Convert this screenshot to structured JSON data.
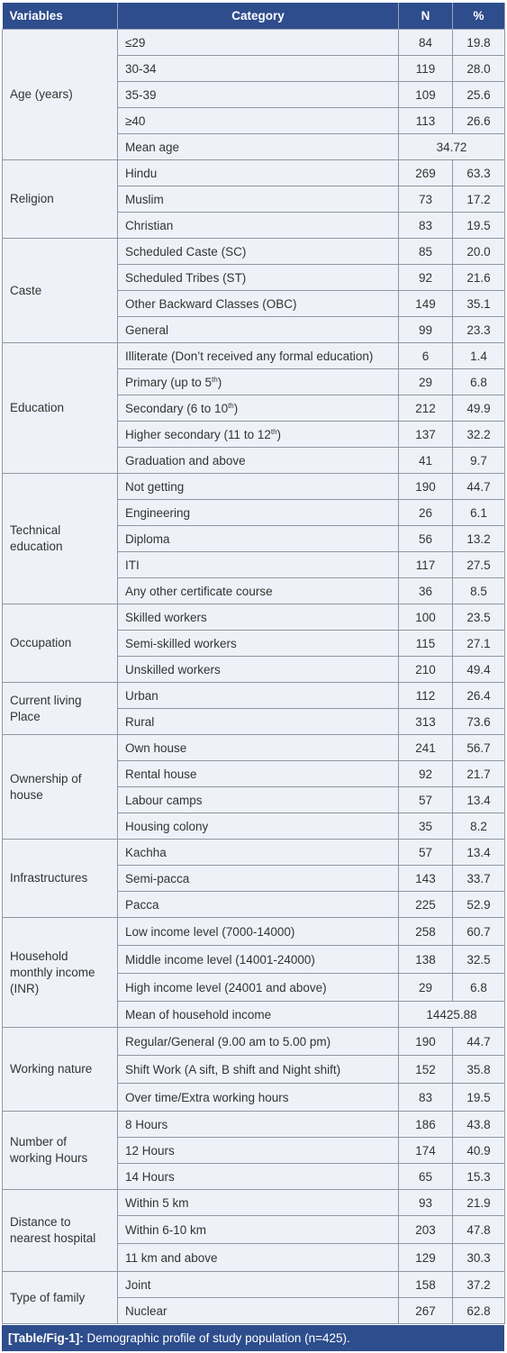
{
  "headers": {
    "variables": "Variables",
    "category": "Category",
    "n": "N",
    "pct": "%"
  },
  "groups": [
    {
      "variable": "Age (years)",
      "rows": [
        {
          "category": "≤29",
          "n": "84",
          "pct": "19.8"
        },
        {
          "category": "30-34",
          "n": "119",
          "pct": "28.0"
        },
        {
          "category": "35-39",
          "n": "109",
          "pct": "25.6"
        },
        {
          "category": "≥40",
          "n": "113",
          "pct": "26.6"
        },
        {
          "category": "Mean age",
          "merged": "34.72"
        }
      ]
    },
    {
      "variable": "Religion",
      "rows": [
        {
          "category": "Hindu",
          "n": "269",
          "pct": "63.3"
        },
        {
          "category": "Muslim",
          "n": "73",
          "pct": "17.2"
        },
        {
          "category": "Christian",
          "n": "83",
          "pct": "19.5"
        }
      ]
    },
    {
      "variable": "Caste",
      "rows": [
        {
          "category": "Scheduled Caste (SC)",
          "n": "85",
          "pct": "20.0"
        },
        {
          "category": "Scheduled Tribes (ST)",
          "n": "92",
          "pct": "21.6"
        },
        {
          "category": "Other Backward Classes (OBC)",
          "n": "149",
          "pct": "35.1"
        },
        {
          "category": "General",
          "n": "99",
          "pct": "23.3"
        }
      ]
    },
    {
      "variable": "Education",
      "rows": [
        {
          "category": "Illiterate (Don’t received any formal education)",
          "n": "6",
          "pct": "1.4"
        },
        {
          "category": "Primary (up to 5",
          "sup": "th",
          "after": ")",
          "n": "29",
          "pct": "6.8"
        },
        {
          "category": "Secondary (6 to 10",
          "sup": "th",
          "after": ")",
          "n": "212",
          "pct": "49.9"
        },
        {
          "category": "Higher secondary (11 to 12",
          "sup": "th",
          "after": ")",
          "n": "137",
          "pct": "32.2"
        },
        {
          "category": "Graduation and above",
          "n": "41",
          "pct": "9.7"
        }
      ]
    },
    {
      "variable": "Technical education",
      "rows": [
        {
          "category": "Not getting",
          "n": "190",
          "pct": "44.7"
        },
        {
          "category": "Engineering",
          "n": "26",
          "pct": "6.1"
        },
        {
          "category": "Diploma",
          "n": "56",
          "pct": "13.2"
        },
        {
          "category": "ITI",
          "n": "117",
          "pct": "27.5"
        },
        {
          "category": "Any other certificate course",
          "n": "36",
          "pct": "8.5"
        }
      ]
    },
    {
      "variable": "Occupation",
      "rows": [
        {
          "category": "Skilled workers",
          "n": "100",
          "pct": "23.5"
        },
        {
          "category": "Semi-skilled workers",
          "n": "115",
          "pct": "27.1"
        },
        {
          "category": "Unskilled workers",
          "n": "210",
          "pct": "49.4"
        }
      ]
    },
    {
      "variable": "Current living Place",
      "rows": [
        {
          "category": "Urban",
          "n": "112",
          "pct": "26.4"
        },
        {
          "category": "Rural",
          "n": "313",
          "pct": "73.6"
        }
      ]
    },
    {
      "variable": "Ownership of house",
      "rows": [
        {
          "category": "Own house",
          "n": "241",
          "pct": "56.7"
        },
        {
          "category": "Rental house",
          "n": "92",
          "pct": "21.7"
        },
        {
          "category": "Labour camps",
          "n": "57",
          "pct": "13.4"
        },
        {
          "category": "Housing colony",
          "n": "35",
          "pct": "8.2"
        }
      ]
    },
    {
      "variable": "Infrastructures",
      "rows": [
        {
          "category": "Kachha",
          "n": "57",
          "pct": "13.4"
        },
        {
          "category": "Semi-pacca",
          "n": "143",
          "pct": "33.7"
        },
        {
          "category": "Pacca",
          "n": "225",
          "pct": "52.9"
        }
      ]
    },
    {
      "variable": "Household monthly income (INR)",
      "rows": [
        {
          "category": "Low income level (7000-14000)",
          "n": "258",
          "pct": "60.7",
          "tall": true
        },
        {
          "category": "Middle income level (14001-24000)",
          "n": "138",
          "pct": "32.5",
          "tall": true
        },
        {
          "category": "High income level (24001 and above)",
          "n": "29",
          "pct": "6.8",
          "tall": true
        },
        {
          "category": "Mean of household income",
          "merged": "14425.88"
        }
      ]
    },
    {
      "variable": "Working nature",
      "rows": [
        {
          "category": "Regular/General (9.00 am to 5.00 pm)",
          "n": "190",
          "pct": "44.7",
          "tall": true
        },
        {
          "category": "Shift Work (A sift, B shift and Night shift)",
          "n": "152",
          "pct": "35.8",
          "tall": true
        },
        {
          "category": "Over time/Extra working hours",
          "n": "83",
          "pct": "19.5",
          "tall": true
        }
      ]
    },
    {
      "variable": "Number of working Hours",
      "rows": [
        {
          "category": "8 Hours",
          "n": "186",
          "pct": "43.8"
        },
        {
          "category": "12 Hours",
          "n": "174",
          "pct": "40.9"
        },
        {
          "category": "14 Hours",
          "n": "65",
          "pct": "15.3"
        }
      ]
    },
    {
      "variable": "Distance to nearest hospital",
      "rows": [
        {
          "category": "Within 5 km",
          "n": "93",
          "pct": "21.9"
        },
        {
          "category": "Within 6-10 km",
          "n": "203",
          "pct": "47.8",
          "tall": true
        },
        {
          "category": "11 km and above",
          "n": "129",
          "pct": "30.3",
          "tall": true
        }
      ]
    },
    {
      "variable": "Type of family",
      "rows": [
        {
          "category": "Joint",
          "n": "158",
          "pct": "37.2"
        },
        {
          "category": "Nuclear",
          "n": "267",
          "pct": "62.8"
        }
      ]
    }
  ],
  "caption": {
    "label": "[Table/Fig-1]:",
    "text": " Demographic profile of study population (n=425)."
  }
}
